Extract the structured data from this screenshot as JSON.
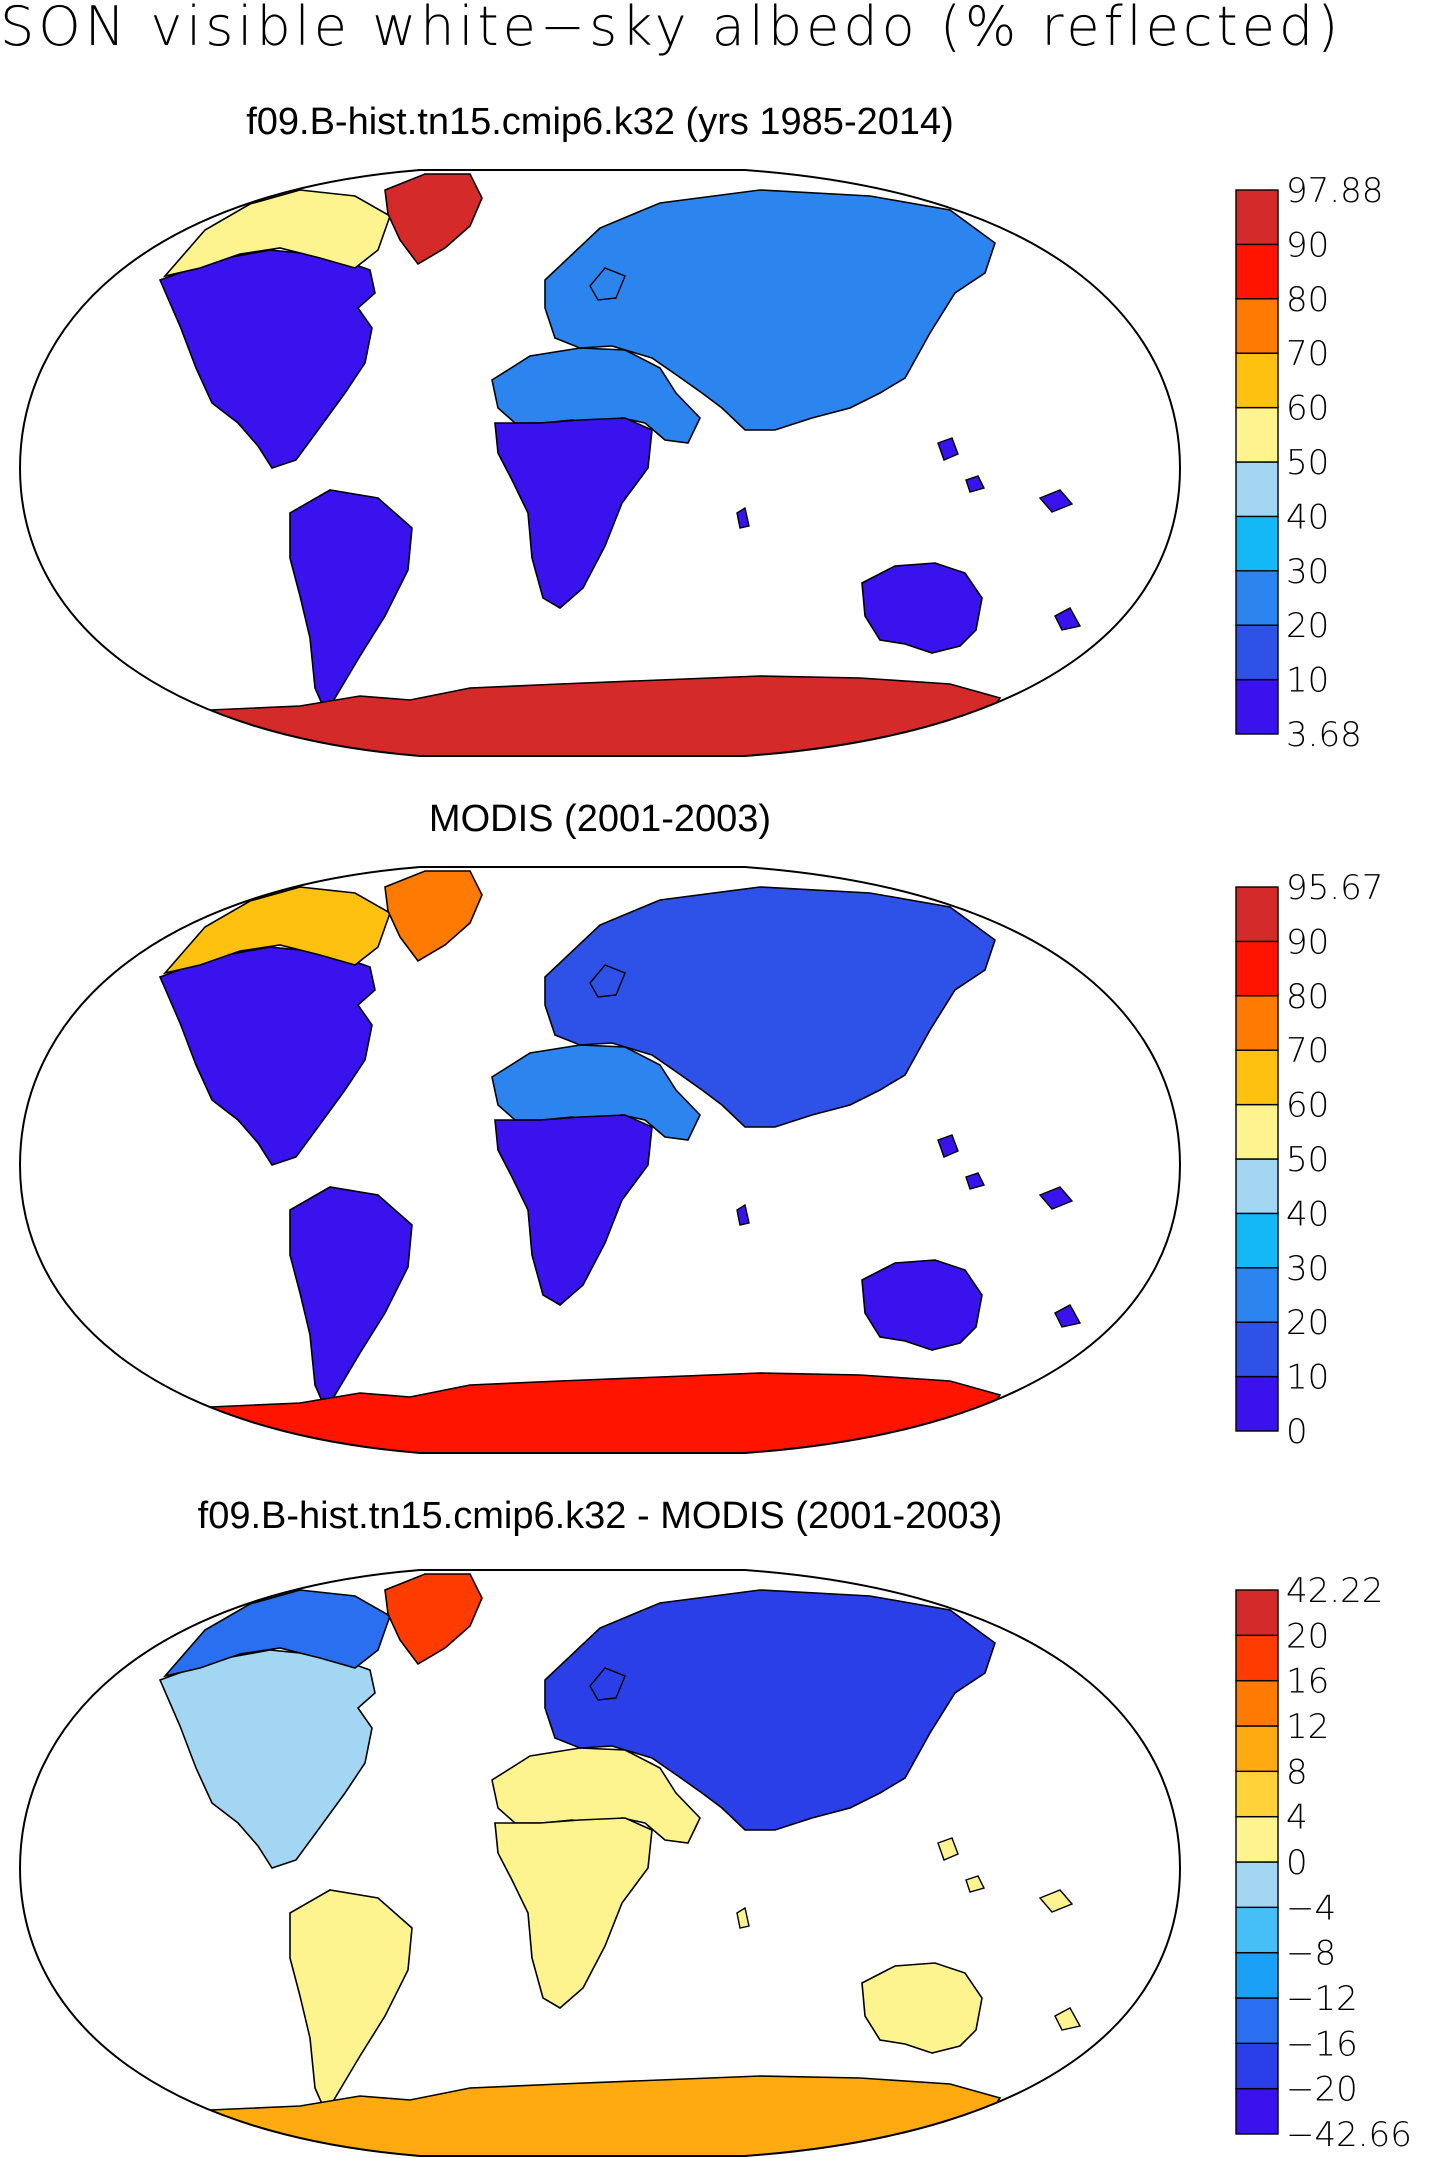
{
  "title": "SON visible white−sky albedo (% reflected)",
  "colors": {
    "seq": [
      "#3a12ee",
      "#2e52e8",
      "#2c84ee",
      "#13b9f5",
      "#a3d6f2",
      "#fdf48f",
      "#ffc10f",
      "#ff7a00",
      "#ff1400",
      "#d42a2a"
    ],
    "div": [
      "#3a12ee",
      "#2b3fe8",
      "#2a6ff0",
      "#1aa0f6",
      "#46bff6",
      "#a3d6f2",
      "#fdf48f",
      "#ffd23a",
      "#ffaa10",
      "#ff7a00",
      "#ff3c00",
      "#d42a2a"
    ],
    "land_outline": "#000000"
  },
  "panels": [
    {
      "title": "f09.B-hist.tn15.cmip6.k32 (yrs 1985-2014)",
      "palette": "seq",
      "colorbar_labels": [
        "3.68",
        "10",
        "20",
        "30",
        "40",
        "50",
        "60",
        "70",
        "80",
        "90",
        "97.88"
      ],
      "regions": {
        "polar": 9,
        "greenland": 9,
        "arctic": 5,
        "boreal": 2,
        "temperate": 0,
        "desert": 2,
        "tropics": 0,
        "oceania": 0
      }
    },
    {
      "title": "MODIS (2001-2003)",
      "palette": "seq",
      "colorbar_labels": [
        "0",
        "10",
        "20",
        "30",
        "40",
        "50",
        "60",
        "70",
        "80",
        "90",
        "95.67"
      ],
      "regions": {
        "polar": 8,
        "greenland": 7,
        "arctic": 6,
        "boreal": 1,
        "temperate": 0,
        "desert": 2,
        "tropics": 0,
        "oceania": 0
      }
    },
    {
      "title": "f09.B-hist.tn15.cmip6.k32 - MODIS (2001-2003)",
      "palette": "div",
      "colorbar_labels": [
        "−42.66",
        "−20",
        "−16",
        "−12",
        "−8",
        "−4",
        "0",
        "4",
        "8",
        "12",
        "16",
        "20",
        "42.22"
      ],
      "regions": {
        "polar": 8,
        "greenland": 10,
        "arctic": 2,
        "boreal": 1,
        "temperate": 5,
        "desert": 6,
        "tropics": 6,
        "oceania": 6
      }
    }
  ]
}
